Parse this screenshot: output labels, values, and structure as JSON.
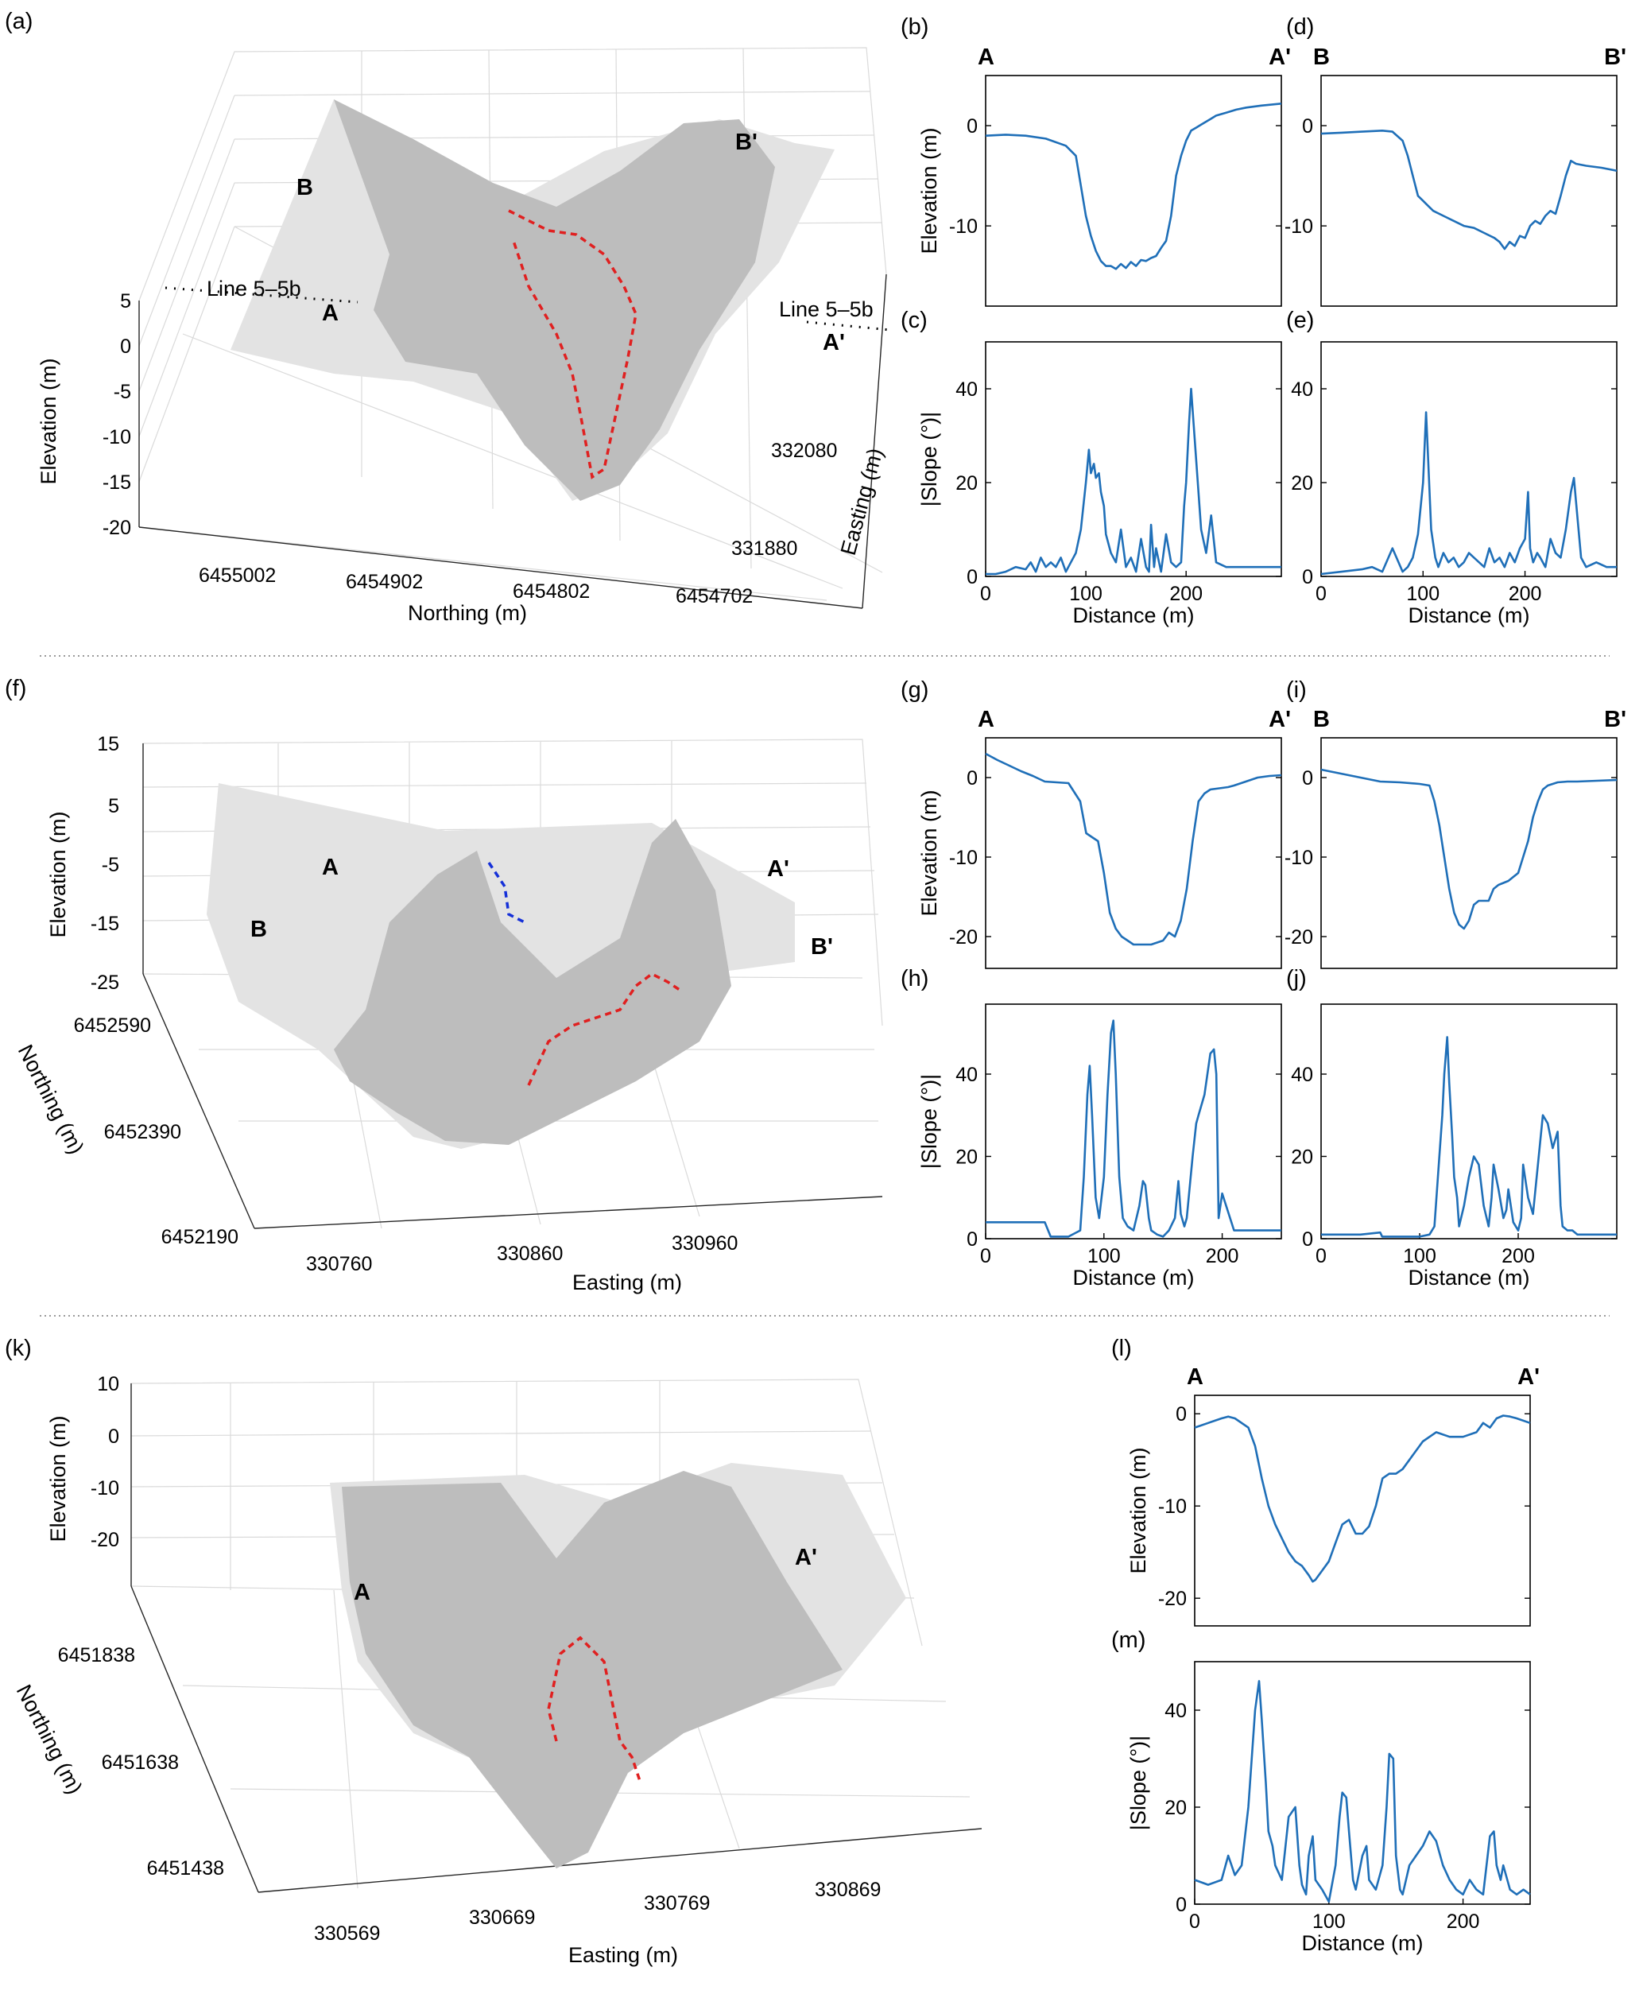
{
  "panel_letters": {
    "a": "(a)",
    "b": "(b)",
    "c": "(c)",
    "d": "(d)",
    "e": "(e)",
    "f": "(f)",
    "g": "(g)",
    "h": "(h)",
    "i": "(i)",
    "j": "(j)",
    "k": "(k)",
    "l": "(l)",
    "m": "(m)"
  },
  "three_d": {
    "a": {
      "zlabel": "Elevation (m)",
      "xlabel": "Northing (m)",
      "ylabel": "Easting (m)",
      "zticks": [
        "5",
        "0",
        "-5",
        "-10",
        "-15",
        "-20"
      ],
      "xticks": [
        "6455002",
        "6454902",
        "6454802",
        "6454702"
      ],
      "yticks": [
        "332080",
        "331880"
      ],
      "markers": [
        "B",
        "A",
        "B'",
        "A'"
      ],
      "line_labels": [
        "Line 5–5b",
        "Line 5–5b"
      ]
    },
    "f": {
      "zlabel": "Elevation (m)",
      "xlabel": "Easting (m)",
      "ylabel": "Northing (m)",
      "zticks": [
        "15",
        "5",
        "-5",
        "-15",
        "-25"
      ],
      "xticks": [
        "330760",
        "330860",
        "330960"
      ],
      "yticks": [
        "6452590",
        "6452390",
        "6452190"
      ],
      "markers": [
        "A",
        "B",
        "A'",
        "B'"
      ]
    },
    "k": {
      "zlabel": "Elevation (m)",
      "xlabel": "Easting (m)",
      "ylabel": "Northing (m)",
      "zticks": [
        "10",
        "0",
        "-10",
        "-20"
      ],
      "xticks": [
        "330569",
        "330669",
        "330769",
        "330869"
      ],
      "yticks": [
        "6451838",
        "6451638",
        "6451438"
      ],
      "markers": [
        "A",
        "A'"
      ]
    }
  },
  "chart_data": [
    {
      "id": "b",
      "type": "line",
      "ylabel": "Elevation (m)",
      "xlabel": "",
      "ylim": [
        -18,
        5
      ],
      "xlim": [
        0,
        295
      ],
      "yticks": [
        0,
        -10
      ],
      "xticks": [],
      "ends": [
        "A",
        "A'"
      ],
      "x": [
        0,
        20,
        40,
        60,
        80,
        90,
        95,
        100,
        105,
        110,
        115,
        120,
        125,
        130,
        135,
        140,
        145,
        150,
        155,
        160,
        165,
        170,
        175,
        180,
        185,
        190,
        195,
        200,
        205,
        210,
        215,
        220,
        225,
        230,
        240,
        250,
        260,
        275,
        295
      ],
      "y": [
        -1,
        -0.9,
        -1,
        -1.3,
        -2,
        -3,
        -6,
        -9,
        -11,
        -12.5,
        -13.5,
        -14,
        -14,
        -14.3,
        -13.8,
        -14.2,
        -13.6,
        -14,
        -13.4,
        -13.5,
        -13.2,
        -13,
        -12.2,
        -11.5,
        -9,
        -5,
        -3,
        -1.5,
        -0.5,
        -0.2,
        0.1,
        0.4,
        0.7,
        1,
        1.3,
        1.6,
        1.8,
        2,
        2.2
      ]
    },
    {
      "id": "c",
      "type": "line",
      "ylabel": "|Slope (°)|",
      "xlabel": "Distance (m)",
      "ylim": [
        0,
        50
      ],
      "xlim": [
        0,
        295
      ],
      "yticks": [
        0,
        20,
        40
      ],
      "xticks": [
        0,
        100,
        200
      ],
      "x": [
        0,
        10,
        20,
        30,
        40,
        45,
        50,
        55,
        60,
        65,
        70,
        75,
        80,
        85,
        90,
        95,
        100,
        103,
        105,
        108,
        110,
        113,
        115,
        118,
        120,
        125,
        130,
        135,
        140,
        145,
        150,
        155,
        160,
        163,
        165,
        168,
        170,
        175,
        180,
        185,
        190,
        195,
        198,
        200,
        203,
        205,
        210,
        215,
        220,
        225,
        230,
        240,
        250,
        270,
        295
      ],
      "y": [
        0.5,
        0.5,
        1,
        2,
        1.5,
        3,
        1,
        4,
        2,
        3,
        2,
        4,
        1,
        3,
        5,
        10,
        20,
        27,
        22,
        24,
        21,
        22,
        18,
        15,
        9,
        5,
        3,
        10,
        2,
        4,
        1,
        8,
        2,
        1,
        11,
        2,
        6,
        1,
        9,
        3,
        2,
        3,
        15,
        20,
        33,
        40,
        25,
        10,
        5,
        13,
        3,
        2,
        2,
        2,
        2
      ]
    },
    {
      "id": "d",
      "type": "line",
      "ylabel": "",
      "xlabel": "",
      "ylim": [
        -18,
        5
      ],
      "xlim": [
        0,
        290
      ],
      "yticks": [
        0,
        -10
      ],
      "xticks": [],
      "ends": [
        "B",
        "B'"
      ],
      "x": [
        0,
        20,
        40,
        60,
        70,
        80,
        85,
        90,
        95,
        100,
        105,
        110,
        120,
        130,
        140,
        150,
        160,
        170,
        175,
        180,
        185,
        190,
        195,
        200,
        205,
        210,
        215,
        220,
        225,
        230,
        235,
        240,
        245,
        250,
        260,
        275,
        290
      ],
      "y": [
        -0.8,
        -0.7,
        -0.6,
        -0.5,
        -0.6,
        -1.5,
        -3,
        -5,
        -7,
        -7.5,
        -8,
        -8.5,
        -9,
        -9.5,
        -10,
        -10.2,
        -10.7,
        -11.2,
        -11.6,
        -12.3,
        -11.6,
        -12,
        -11,
        -11.2,
        -10,
        -9.5,
        -9.8,
        -9,
        -8.5,
        -8.8,
        -7,
        -5,
        -3.5,
        -3.8,
        -4,
        -4.2,
        -4.5
      ]
    },
    {
      "id": "e",
      "type": "line",
      "ylabel": "",
      "xlabel": "Distance (m)",
      "ylim": [
        0,
        50
      ],
      "xlim": [
        0,
        290
      ],
      "yticks": [
        0,
        20,
        40
      ],
      "xticks": [
        0,
        100,
        200
      ],
      "x": [
        0,
        20,
        40,
        50,
        60,
        70,
        80,
        85,
        90,
        95,
        100,
        103,
        105,
        108,
        112,
        115,
        120,
        125,
        130,
        135,
        140,
        145,
        150,
        155,
        160,
        165,
        170,
        175,
        180,
        185,
        190,
        195,
        200,
        203,
        205,
        208,
        212,
        215,
        220,
        225,
        230,
        235,
        240,
        245,
        248,
        250,
        255,
        260,
        270,
        280,
        290
      ],
      "y": [
        0.5,
        1,
        1.5,
        2,
        1,
        6,
        1,
        2,
        4,
        9,
        20,
        35,
        25,
        10,
        4,
        2,
        5,
        3,
        4,
        2,
        3,
        5,
        4,
        3,
        2,
        6,
        3,
        4,
        2,
        5,
        3,
        6,
        8,
        18,
        6,
        3,
        5,
        4,
        2,
        8,
        5,
        4,
        10,
        18,
        21,
        16,
        4,
        2,
        3,
        2,
        2
      ]
    },
    {
      "id": "g",
      "type": "line",
      "ylabel": "Elevation (m)",
      "xlabel": "",
      "ylim": [
        -24,
        5
      ],
      "xlim": [
        0,
        250
      ],
      "yticks": [
        0,
        -10,
        -20
      ],
      "xticks": [],
      "ends": [
        "A",
        "A'"
      ],
      "x": [
        0,
        10,
        20,
        30,
        40,
        50,
        60,
        70,
        80,
        85,
        90,
        95,
        100,
        105,
        110,
        115,
        120,
        125,
        130,
        135,
        140,
        150,
        155,
        160,
        165,
        170,
        175,
        180,
        185,
        190,
        195,
        200,
        205,
        210,
        220,
        230,
        240,
        250
      ],
      "y": [
        3,
        2.2,
        1.5,
        0.8,
        0.2,
        -0.5,
        -0.6,
        -0.7,
        -3,
        -7,
        -7.5,
        -8,
        -12,
        -17,
        -19,
        -20,
        -20.5,
        -21,
        -21,
        -21,
        -21,
        -20.5,
        -19.5,
        -20,
        -18,
        -14,
        -8,
        -3,
        -2,
        -1.5,
        -1.4,
        -1.3,
        -1.2,
        -1,
        -0.5,
        0,
        0.2,
        0.3
      ]
    },
    {
      "id": "h",
      "type": "line",
      "ylabel": "|Slope (°)|",
      "xlabel": "Distance (m)",
      "ylim": [
        0,
        57
      ],
      "xlim": [
        0,
        250
      ],
      "yticks": [
        0,
        20,
        40
      ],
      "xticks": [
        0,
        100,
        200
      ],
      "x": [
        0,
        20,
        40,
        50,
        55,
        60,
        70,
        80,
        83,
        86,
        88,
        90,
        93,
        96,
        100,
        103,
        106,
        108,
        110,
        113,
        116,
        120,
        125,
        130,
        133,
        135,
        138,
        140,
        145,
        150,
        155,
        160,
        163,
        165,
        168,
        170,
        175,
        178,
        180,
        185,
        190,
        193,
        195,
        197,
        200,
        210,
        220,
        230,
        250
      ],
      "y": [
        4,
        4,
        4,
        4,
        0.5,
        0.5,
        0.5,
        2,
        15,
        35,
        42,
        30,
        10,
        5,
        15,
        35,
        50,
        53,
        40,
        15,
        5,
        3,
        2,
        8,
        14,
        13,
        5,
        2,
        1,
        0.5,
        2,
        5,
        14,
        6,
        3,
        5,
        20,
        28,
        30,
        35,
        45,
        46,
        40,
        5,
        11,
        2,
        2,
        2,
        2
      ]
    },
    {
      "id": "i",
      "type": "line",
      "ylabel": "",
      "xlabel": "",
      "ylim": [
        -24,
        5
      ],
      "xlim": [
        0,
        300
      ],
      "yticks": [
        0,
        -10,
        -20
      ],
      "xticks": [],
      "ends": [
        "B",
        "B'"
      ],
      "x": [
        0,
        20,
        40,
        60,
        80,
        100,
        110,
        115,
        120,
        125,
        130,
        135,
        140,
        145,
        150,
        155,
        160,
        170,
        175,
        180,
        190,
        200,
        205,
        210,
        215,
        220,
        225,
        230,
        235,
        240,
        250,
        260,
        280,
        300
      ],
      "y": [
        1,
        0.5,
        0,
        -0.5,
        -0.6,
        -0.8,
        -1,
        -3,
        -6,
        -10,
        -14,
        -17,
        -18.5,
        -19,
        -18,
        -16,
        -15.5,
        -15.5,
        -14,
        -13.5,
        -13,
        -12,
        -10,
        -8,
        -5,
        -3,
        -1.5,
        -1,
        -0.8,
        -0.6,
        -0.5,
        -0.5,
        -0.4,
        -0.3
      ]
    },
    {
      "id": "j",
      "type": "line",
      "ylabel": "",
      "xlabel": "Distance (m)",
      "ylim": [
        0,
        57
      ],
      "xlim": [
        0,
        300
      ],
      "yticks": [
        0,
        20,
        40
      ],
      "xticks": [
        0,
        100,
        200
      ],
      "x": [
        0,
        20,
        40,
        60,
        62,
        70,
        80,
        100,
        110,
        115,
        120,
        123,
        125,
        128,
        130,
        133,
        135,
        138,
        140,
        145,
        150,
        155,
        160,
        165,
        170,
        173,
        175,
        180,
        185,
        188,
        190,
        195,
        200,
        203,
        205,
        210,
        215,
        220,
        225,
        230,
        235,
        240,
        243,
        245,
        250,
        255,
        260,
        270,
        280,
        300
      ],
      "y": [
        1,
        1,
        1,
        1.5,
        0.5,
        0.5,
        0.5,
        0.5,
        1,
        3,
        20,
        30,
        40,
        49,
        38,
        25,
        15,
        10,
        3,
        8,
        15,
        20,
        18,
        8,
        3,
        10,
        18,
        12,
        5,
        7,
        12,
        4,
        2,
        5,
        18,
        10,
        6,
        18,
        30,
        28,
        22,
        26,
        8,
        3,
        2,
        2,
        1,
        1,
        1,
        1
      ]
    },
    {
      "id": "l",
      "type": "line",
      "ylabel": "Elevation (m)",
      "xlabel": "",
      "ylim": [
        -23,
        2
      ],
      "xlim": [
        0,
        250
      ],
      "yticks": [
        0,
        -10,
        -20
      ],
      "xticks": [],
      "ends": [
        "A",
        "A'"
      ],
      "x": [
        0,
        10,
        20,
        25,
        30,
        40,
        45,
        50,
        55,
        60,
        65,
        70,
        75,
        80,
        85,
        88,
        90,
        95,
        100,
        105,
        110,
        115,
        120,
        125,
        130,
        135,
        140,
        145,
        150,
        155,
        160,
        170,
        180,
        190,
        200,
        210,
        215,
        220,
        225,
        230,
        235,
        240,
        250
      ],
      "y": [
        -1.5,
        -1,
        -0.5,
        -0.3,
        -0.5,
        -1.5,
        -3.5,
        -7,
        -10,
        -12,
        -13.5,
        -15,
        -16,
        -16.5,
        -17.5,
        -18.2,
        -18,
        -17,
        -16,
        -14,
        -12,
        -11.5,
        -13,
        -13,
        -12.2,
        -10,
        -7,
        -6.5,
        -6.5,
        -6,
        -5,
        -3,
        -2,
        -2.5,
        -2.5,
        -2,
        -1,
        -1.5,
        -0.5,
        -0.2,
        -0.3,
        -0.5,
        -1
      ]
    },
    {
      "id": "m",
      "type": "line",
      "ylabel": "|Slope (°)|",
      "xlabel": "Distance (m)",
      "ylim": [
        0,
        50
      ],
      "xlim": [
        0,
        250
      ],
      "yticks": [
        0,
        20,
        40
      ],
      "xticks": [
        0,
        100,
        200
      ],
      "x": [
        0,
        10,
        20,
        25,
        30,
        35,
        40,
        45,
        48,
        50,
        53,
        55,
        58,
        60,
        65,
        70,
        75,
        78,
        80,
        83,
        85,
        88,
        90,
        95,
        100,
        105,
        108,
        110,
        113,
        115,
        118,
        120,
        125,
        128,
        130,
        135,
        140,
        143,
        145,
        148,
        150,
        153,
        155,
        160,
        165,
        170,
        175,
        180,
        185,
        190,
        195,
        200,
        205,
        210,
        215,
        220,
        223,
        225,
        228,
        230,
        235,
        240,
        245,
        250
      ],
      "y": [
        5,
        4,
        5,
        10,
        6,
        8,
        20,
        40,
        46,
        38,
        25,
        15,
        12,
        8,
        5,
        18,
        20,
        8,
        4,
        2,
        10,
        14,
        5,
        3,
        0.5,
        8,
        18,
        23,
        22,
        15,
        5,
        3,
        10,
        12,
        5,
        3,
        8,
        20,
        31,
        30,
        10,
        3,
        2,
        8,
        10,
        12,
        15,
        13,
        8,
        5,
        3,
        2,
        5,
        3,
        2,
        14,
        15,
        8,
        5,
        8,
        3,
        2,
        3,
        2
      ]
    }
  ]
}
